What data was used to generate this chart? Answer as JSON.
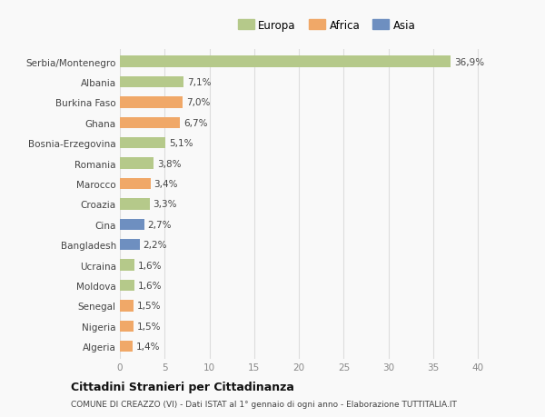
{
  "categories": [
    "Algeria",
    "Nigeria",
    "Senegal",
    "Moldova",
    "Ucraina",
    "Bangladesh",
    "Cina",
    "Croazia",
    "Marocco",
    "Romania",
    "Bosnia-Erzegovina",
    "Ghana",
    "Burkina Faso",
    "Albania",
    "Serbia/Montenegro"
  ],
  "values": [
    1.4,
    1.5,
    1.5,
    1.6,
    1.6,
    2.2,
    2.7,
    3.3,
    3.4,
    3.8,
    5.1,
    6.7,
    7.0,
    7.1,
    36.9
  ],
  "labels": [
    "1,4%",
    "1,5%",
    "1,5%",
    "1,6%",
    "1,6%",
    "2,2%",
    "2,7%",
    "3,3%",
    "3,4%",
    "3,8%",
    "5,1%",
    "6,7%",
    "7,0%",
    "7,1%",
    "36,9%"
  ],
  "colors": [
    "#f0a868",
    "#f0a868",
    "#f0a868",
    "#b5c98a",
    "#b5c98a",
    "#6e8fc0",
    "#6e8fc0",
    "#b5c98a",
    "#f0a868",
    "#b5c98a",
    "#b5c98a",
    "#f0a868",
    "#f0a868",
    "#b5c98a",
    "#b5c98a"
  ],
  "legend_labels": [
    "Europa",
    "Africa",
    "Asia"
  ],
  "legend_colors": [
    "#b5c98a",
    "#f0a868",
    "#6e8fc0"
  ],
  "xlabel_ticks": [
    0,
    5,
    10,
    15,
    20,
    25,
    30,
    35,
    40
  ],
  "xlim": [
    0,
    42
  ],
  "title_line1": "Cittadini Stranieri per Cittadinanza",
  "title_line2": "COMUNE DI CREAZZO (VI) - Dati ISTAT al 1° gennaio di ogni anno - Elaborazione TUTTITALIA.IT",
  "background_color": "#f9f9f9",
  "bar_height": 0.55,
  "fig_width": 6.0,
  "fig_height": 4.6,
  "dpi": 100
}
